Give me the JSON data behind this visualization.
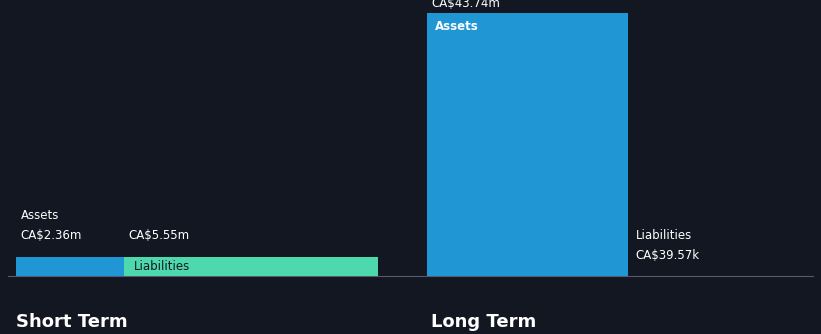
{
  "background_color": "#131722",
  "text_color": "#ffffff",
  "short_term_label": "Short Term",
  "long_term_label": "Long Term",
  "short_term_assets_value": 2.36,
  "short_term_assets_label": "CA$2.36m",
  "short_term_liabilities_value": 5.55,
  "short_term_liabilities_label": "CA$5.55m",
  "long_term_assets_value": 43.74,
  "long_term_assets_label": "CA$43.74m",
  "long_term_liabilities_value": 0.03957,
  "long_term_liabilities_label": "CA$39.57k",
  "assets_label": "Assets",
  "liabilities_label": "Liabilities",
  "color_assets": "#2196d4",
  "color_liabilities": "#4dd9ac",
  "divider_color": "#555a6e",
  "section_label_fontsize": 13,
  "bar_label_fontsize": 8.5,
  "inner_label_fontsize": 8.5
}
